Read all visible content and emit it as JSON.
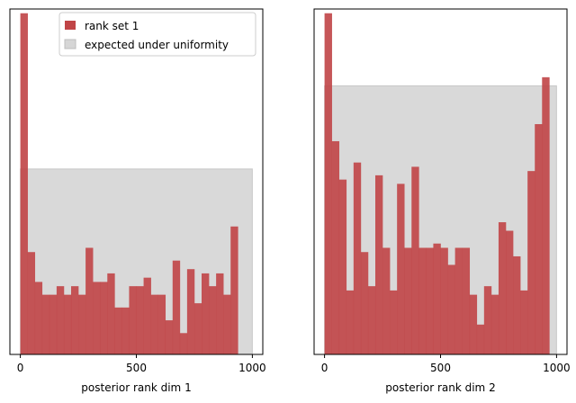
{
  "colors": {
    "rank_bar": "#c04446",
    "expected_band": "#bfbfbf",
    "legend_frame": "#cccccc"
  },
  "legend": {
    "items": [
      {
        "label": "rank set 1",
        "color": "#c04446"
      },
      {
        "label": "expected under uniformity",
        "color": "#d6d6d6"
      }
    ],
    "placement": "top-right"
  },
  "chart_data": [
    {
      "type": "bar",
      "title": "",
      "xlabel": "posterior rank dim 1",
      "ylabel": "",
      "xlim": [
        -45,
        1045
      ],
      "ylim": [
        0,
        162
      ],
      "xticks": [
        0,
        500,
        1000
      ],
      "bin_width": 31.25,
      "expected_band": [
        0,
        87
      ],
      "series": [
        {
          "name": "rank set 1",
          "values": [
            160,
            48,
            34,
            28,
            28,
            32,
            28,
            32,
            28,
            50,
            34,
            34,
            38,
            22,
            22,
            32,
            32,
            36,
            28,
            28,
            16,
            44,
            10,
            40,
            24,
            38,
            32,
            38,
            28,
            60
          ]
        }
      ]
    },
    {
      "type": "bar",
      "title": "",
      "xlabel": "posterior rank dim 2",
      "ylabel": "",
      "xlim": [
        -45,
        1045
      ],
      "ylim": [
        0,
        162
      ],
      "xticks": [
        0,
        500,
        1000
      ],
      "bin_width": 31.25,
      "expected_band": [
        0,
        126
      ],
      "series": [
        {
          "name": "rank set 1",
          "values": [
            160,
            100,
            82,
            30,
            90,
            48,
            32,
            84,
            50,
            30,
            80,
            50,
            88,
            50,
            50,
            52,
            50,
            42,
            50,
            50,
            28,
            14,
            32,
            28,
            62,
            58,
            46,
            30,
            86,
            108,
            130
          ]
        }
      ]
    }
  ]
}
